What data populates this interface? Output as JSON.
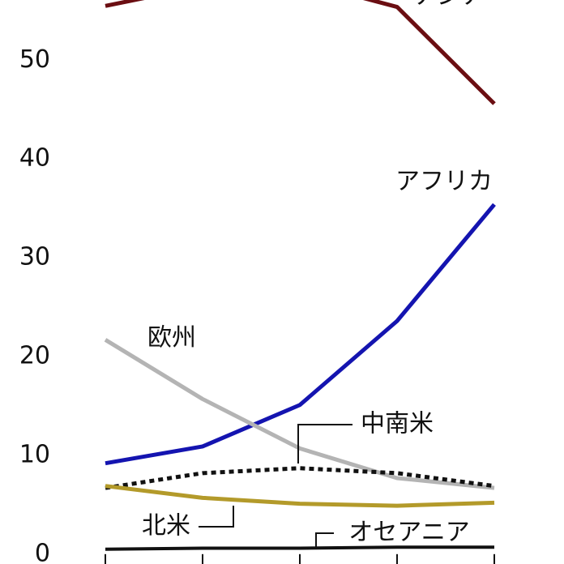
{
  "chart_data": {
    "type": "line",
    "categories": [
      null,
      null,
      null,
      null,
      null
    ],
    "series": [
      {
        "name": "アジア",
        "color": "#6b0e12",
        "values": [
          55.5,
          57.5,
          58,
          55.4,
          45.6
        ]
      },
      {
        "name": "アフリカ",
        "color": "#1414b0",
        "values": [
          9.2,
          10.9,
          15.1,
          23.6,
          35.4
        ]
      },
      {
        "name": "欧州",
        "color": "#b4b4b4",
        "values": [
          21.7,
          15.7,
          10.7,
          7.7,
          6.7
        ]
      },
      {
        "name": "中南米",
        "color": "#111111",
        "dashed": true,
        "values": [
          6.7,
          8.2,
          8.7,
          8.2,
          6.9
        ]
      },
      {
        "name": "北米",
        "color": "#b39a2a",
        "values": [
          6.9,
          5.7,
          5.1,
          4.9,
          5.2
        ]
      },
      {
        "name": "オセアニア",
        "color": "#111111",
        "values": [
          0.5,
          0.6,
          0.6,
          0.7,
          0.7
        ]
      }
    ],
    "ylim": [
      -1,
      56.1
    ],
    "yticks": [
      0,
      10,
      20,
      30,
      40,
      50
    ]
  }
}
